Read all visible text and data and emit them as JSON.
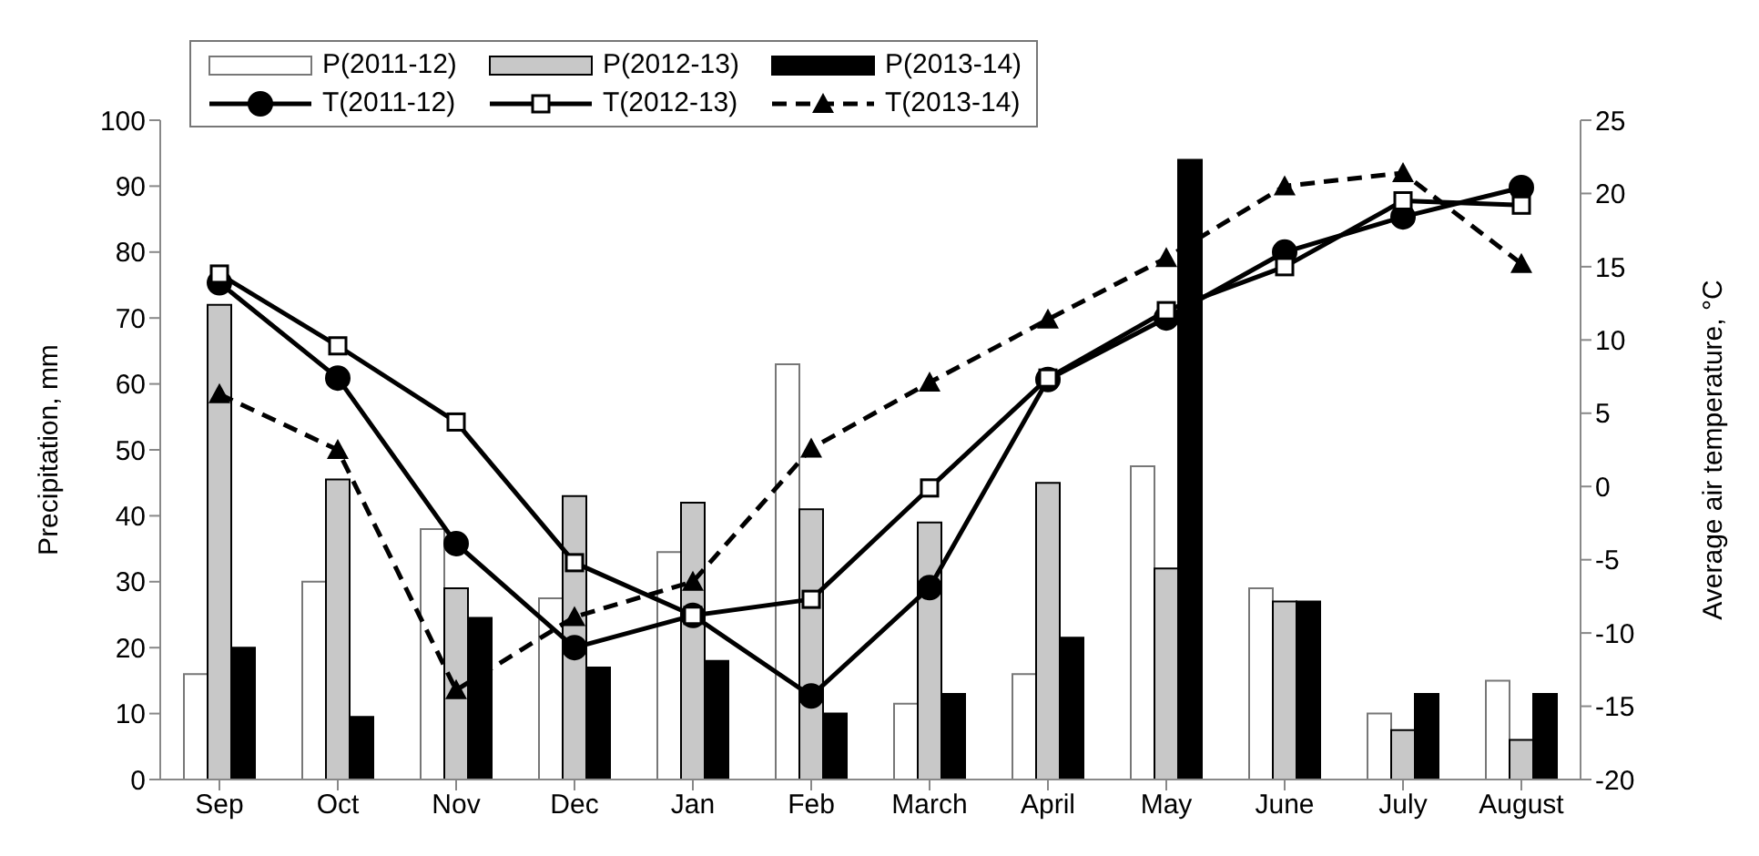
{
  "chart_data": {
    "type": "bar",
    "ylabel": "Precipitation, mm",
    "y2label": "Average air temperature, °C",
    "categories": [
      "Sep",
      "Oct",
      "Nov",
      "Dec",
      "Jan",
      "Feb",
      "March",
      "April",
      "May",
      "June",
      "July",
      "August"
    ],
    "series": [
      {
        "name": "P(2011-12)",
        "color": "#ffffff",
        "values": [
          16,
          30,
          38,
          27.5,
          34.5,
          63,
          11.5,
          16,
          47.5,
          29,
          10,
          15
        ]
      },
      {
        "name": "P(2012-13)",
        "color": "#c8c8c8",
        "values": [
          72,
          45.5,
          29,
          43,
          42,
          41,
          39,
          45,
          32,
          27,
          7.5,
          6
        ]
      },
      {
        "name": "P(2013-14)",
        "color": "#000000",
        "values": [
          20,
          9.5,
          24.5,
          17,
          18,
          10,
          13,
          21.5,
          94,
          27,
          13,
          13
        ]
      },
      {
        "name": "T(2011-12)",
        "type": "line",
        "axis": "y2",
        "color": "#000000",
        "marker": "circle",
        "line_style": "solid",
        "values": [
          13.9,
          7.4,
          -3.9,
          -11,
          -8.8,
          -14.3,
          -6.9,
          7.3,
          11.5,
          16,
          18.4,
          20.4
        ]
      },
      {
        "name": "T(2012-13)",
        "type": "line",
        "axis": "y2",
        "color": "#000000",
        "marker": "square",
        "line_style": "solid",
        "values": [
          14.5,
          9.6,
          4.4,
          -5.2,
          -8.8,
          -7.7,
          -0.1,
          7.4,
          12,
          15,
          19.5,
          19.2
        ]
      },
      {
        "name": "T(2013-14)",
        "type": "line",
        "axis": "y2",
        "color": "#000000",
        "marker": "triangle",
        "line_style": "dashed",
        "values": [
          6.3,
          2.5,
          -13.9,
          -8.9,
          -6.5,
          2.6,
          7.1,
          11.4,
          15.6,
          20.5,
          21.4,
          15.2
        ]
      }
    ],
    "ylim": [
      0,
      100
    ],
    "yticks": [
      0,
      10,
      20,
      30,
      40,
      50,
      60,
      70,
      80,
      90,
      100
    ],
    "y2lim": [
      -20,
      25
    ],
    "y2ticks": [
      -20,
      -15,
      -10,
      -5,
      0,
      5,
      10,
      15,
      20,
      25
    ],
    "grid": false,
    "legend": "top left"
  }
}
